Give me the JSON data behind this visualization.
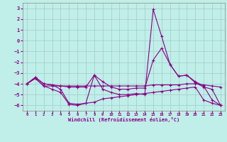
{
  "xlabel": "Windchill (Refroidissement éolien,°C)",
  "bg_color": "#c0eee8",
  "grid_color": "#a0ccc8",
  "line_color": "#880088",
  "xlim_min": -0.5,
  "xlim_max": 23.5,
  "ylim_min": -6.5,
  "ylim_max": 3.5,
  "yticks": [
    -6,
    -5,
    -4,
    -3,
    -2,
    -1,
    0,
    1,
    2,
    3
  ],
  "xticks": [
    0,
    1,
    2,
    3,
    4,
    5,
    6,
    7,
    8,
    9,
    10,
    11,
    12,
    13,
    14,
    15,
    16,
    17,
    18,
    19,
    20,
    21,
    22,
    23
  ],
  "series": [
    [
      -4.0,
      -3.5,
      -4.2,
      -4.2,
      -4.2,
      -4.2,
      -4.2,
      -4.2,
      -4.2,
      -4.2,
      -4.2,
      -4.2,
      -4.2,
      -4.2,
      -4.2,
      -4.1,
      -4.1,
      -4.1,
      -4.1,
      -4.0,
      -4.0,
      -4.1,
      -4.2,
      -4.3
    ],
    [
      -4.0,
      -3.4,
      -4.0,
      -4.1,
      -4.2,
      -4.3,
      -4.3,
      -4.3,
      -3.2,
      -3.8,
      -4.3,
      -4.5,
      -4.5,
      -4.4,
      -4.4,
      -1.8,
      -0.7,
      -2.2,
      -3.3,
      -3.2,
      -3.9,
      -4.3,
      -4.5,
      -6.0
    ],
    [
      -4.0,
      -3.5,
      -4.2,
      -4.5,
      -4.8,
      -5.9,
      -6.0,
      -5.8,
      -5.7,
      -5.4,
      -5.3,
      -5.2,
      -5.1,
      -5.0,
      -4.9,
      -4.8,
      -4.7,
      -4.6,
      -4.5,
      -4.4,
      -4.3,
      -5.5,
      -5.8,
      -6.0
    ],
    [
      -4.0,
      -3.4,
      -4.0,
      -4.1,
      -4.5,
      -5.8,
      -5.9,
      -5.8,
      -3.2,
      -4.5,
      -4.8,
      -5.0,
      -5.0,
      -4.9,
      -5.0,
      2.9,
      0.4,
      -2.2,
      -3.3,
      -3.2,
      -3.8,
      -4.2,
      -5.5,
      -6.0
    ]
  ]
}
